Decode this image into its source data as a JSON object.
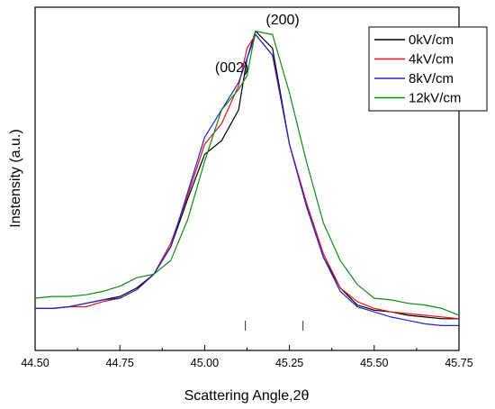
{
  "chart_data": {
    "type": "line",
    "title": "",
    "xlabel": "Scattering Angle,2θ",
    "ylabel": "Instensity (a.u.)",
    "xlim": [
      44.5,
      45.75
    ],
    "ylim": [
      0,
      1.0
    ],
    "xticks": [
      "44.50",
      "44.75",
      "45.00",
      "45.25",
      "45.50",
      "45.75"
    ],
    "yticks": [],
    "grid": false,
    "legend_position": "top-right",
    "annotations": [
      {
        "text": "(002)",
        "x": 45.08,
        "y": 0.81
      },
      {
        "text": "(200)",
        "x": 45.23,
        "y": 0.95
      }
    ],
    "reference_marks": [
      45.12,
      45.29
    ],
    "series": [
      {
        "name": "0kV/cm",
        "color": "#000000",
        "x": [
          44.5,
          44.55,
          44.6,
          44.65,
          44.7,
          44.75,
          44.8,
          44.85,
          44.9,
          44.95,
          45.0,
          45.05,
          45.1,
          45.125,
          45.15,
          45.2,
          45.25,
          45.3,
          45.35,
          45.4,
          45.45,
          45.5,
          45.55,
          45.6,
          45.65,
          45.7,
          45.75
        ],
        "y": [
          0.12,
          0.12,
          0.125,
          0.135,
          0.145,
          0.155,
          0.18,
          0.22,
          0.3,
          0.44,
          0.57,
          0.61,
          0.7,
          0.85,
          0.93,
          0.88,
          0.6,
          0.42,
          0.27,
          0.18,
          0.13,
          0.115,
          0.11,
          0.1,
          0.095,
          0.09,
          0.09
        ]
      },
      {
        "name": "4kV/cm",
        "color": "#e8141a",
        "x": [
          44.5,
          44.55,
          44.6,
          44.65,
          44.7,
          44.75,
          44.8,
          44.85,
          44.9,
          44.95,
          45.0,
          45.05,
          45.1,
          45.125,
          45.15,
          45.2,
          45.25,
          45.3,
          45.35,
          45.4,
          45.45,
          45.5,
          45.55,
          45.6,
          45.65,
          45.7,
          45.75
        ],
        "y": [
          0.12,
          0.12,
          0.125,
          0.125,
          0.14,
          0.15,
          0.175,
          0.22,
          0.31,
          0.45,
          0.6,
          0.66,
          0.77,
          0.88,
          0.92,
          0.86,
          0.6,
          0.43,
          0.28,
          0.18,
          0.14,
          0.12,
          0.11,
          0.105,
          0.1,
          0.095,
          0.09
        ]
      },
      {
        "name": "8kV/cm",
        "color": "#2323d0",
        "x": [
          44.5,
          44.55,
          44.6,
          44.65,
          44.7,
          44.75,
          44.8,
          44.85,
          44.9,
          44.95,
          45.0,
          45.05,
          45.1,
          45.125,
          45.15,
          45.2,
          45.25,
          45.3,
          45.35,
          45.4,
          45.45,
          45.5,
          45.55,
          45.6,
          45.65,
          45.7,
          45.75
        ],
        "y": [
          0.12,
          0.12,
          0.125,
          0.135,
          0.145,
          0.15,
          0.175,
          0.22,
          0.3,
          0.46,
          0.62,
          0.7,
          0.78,
          0.85,
          0.92,
          0.86,
          0.6,
          0.42,
          0.27,
          0.17,
          0.125,
          0.11,
          0.095,
          0.085,
          0.075,
          0.07,
          0.07
        ]
      },
      {
        "name": "12kV/cm",
        "color": "#0e8a16",
        "x": [
          44.5,
          44.55,
          44.6,
          44.65,
          44.7,
          44.75,
          44.8,
          44.85,
          44.9,
          44.95,
          45.0,
          45.05,
          45.1,
          45.125,
          45.15,
          45.2,
          45.25,
          45.3,
          45.35,
          45.4,
          45.45,
          45.5,
          45.55,
          45.6,
          45.65,
          45.7,
          45.75
        ],
        "y": [
          0.15,
          0.155,
          0.155,
          0.16,
          0.17,
          0.185,
          0.21,
          0.22,
          0.26,
          0.38,
          0.55,
          0.7,
          0.76,
          0.8,
          0.93,
          0.92,
          0.75,
          0.55,
          0.37,
          0.26,
          0.19,
          0.15,
          0.145,
          0.135,
          0.13,
          0.12,
          0.1
        ]
      }
    ]
  }
}
